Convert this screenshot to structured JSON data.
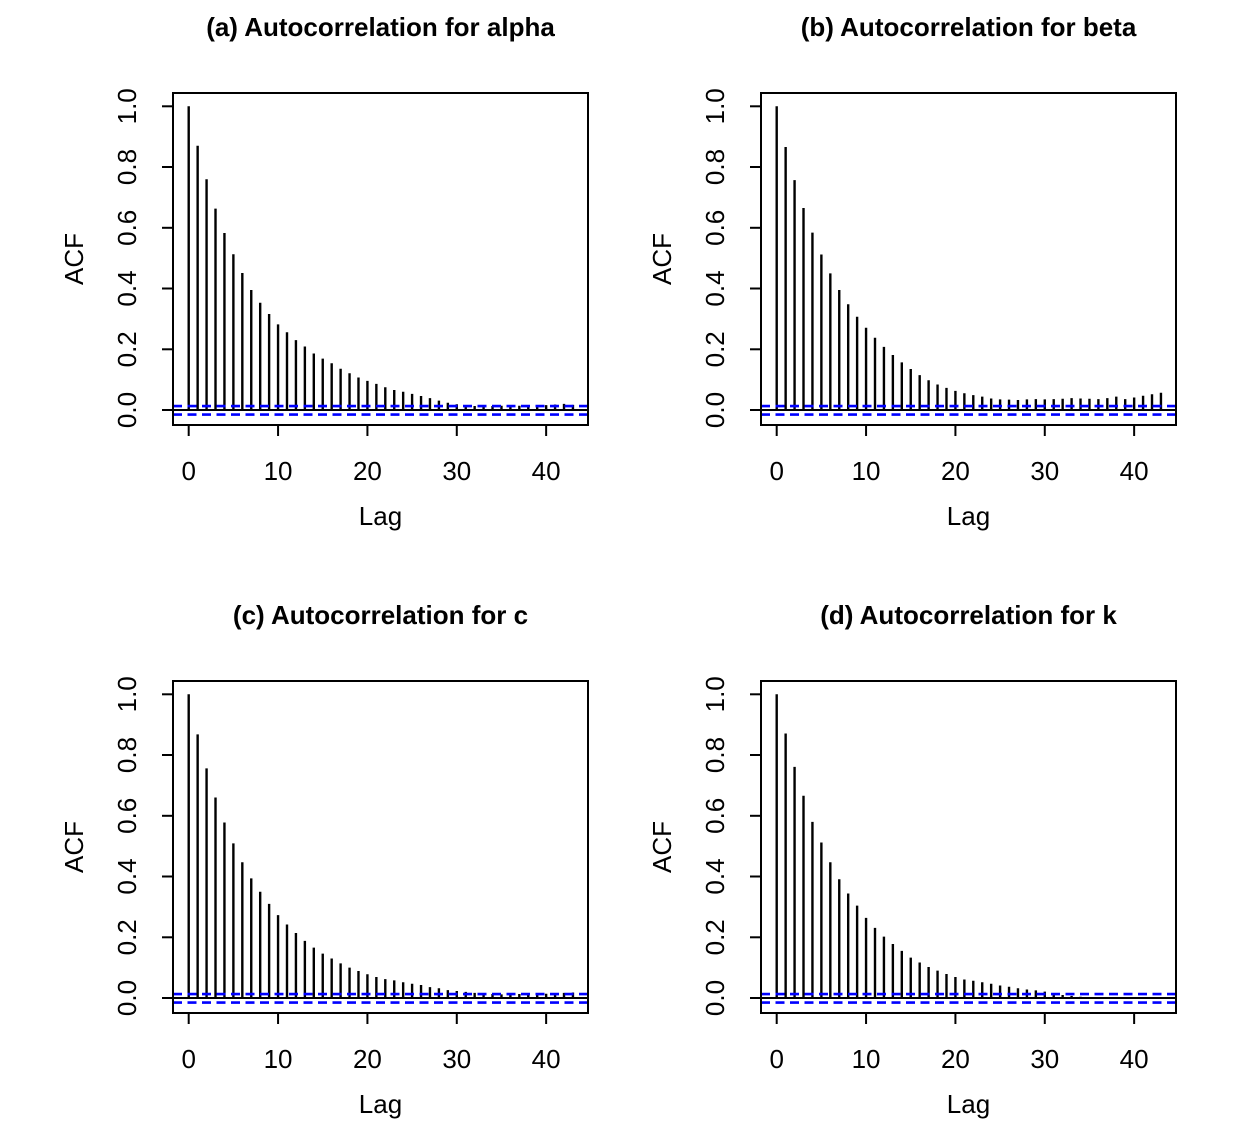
{
  "figure": {
    "background": "#ffffff",
    "line_color": "#000000",
    "ci_line_color": "#0000ff"
  },
  "chart_data": [
    {
      "id": "a",
      "type": "bar",
      "title": "(a) Autocorrelation for alpha",
      "xlabel": "Lag",
      "ylabel": "ACF",
      "x_ticks": [
        0,
        10,
        20,
        30,
        40
      ],
      "y_ticks": [
        {
          "v": 0.0,
          "label": "0.0"
        },
        {
          "v": 0.2,
          "label": "0.2"
        },
        {
          "v": 0.4,
          "label": "0.4"
        },
        {
          "v": 0.6,
          "label": "0.6"
        },
        {
          "v": 0.8,
          "label": "0.8"
        },
        {
          "v": 1.0,
          "label": "1.0"
        }
      ],
      "xlim": [
        -1.8,
        44.8
      ],
      "ylim": [
        -0.05,
        1.045
      ],
      "grid": false,
      "ci_upper": 0.013,
      "ci_lower": -0.015,
      "values": [
        1,
        0.87,
        0.76,
        0.663,
        0.583,
        0.513,
        0.451,
        0.395,
        0.353,
        0.316,
        0.282,
        0.256,
        0.23,
        0.209,
        0.186,
        0.169,
        0.154,
        0.136,
        0.121,
        0.107,
        0.096,
        0.086,
        0.075,
        0.066,
        0.06,
        0.053,
        0.046,
        0.039,
        0.031,
        0.024,
        0.019,
        0.014,
        0.013,
        0.012,
        0.013,
        0.014,
        0.013,
        0.014,
        0.013,
        0.012,
        0.016,
        0.018,
        0.02,
        0.017
      ]
    },
    {
      "id": "b",
      "type": "bar",
      "title": "(b) Autocorrelation for beta",
      "xlabel": "Lag",
      "ylabel": "ACF",
      "x_ticks": [
        0,
        10,
        20,
        30,
        40
      ],
      "y_ticks": [
        {
          "v": 0.0,
          "label": "0.0"
        },
        {
          "v": 0.2,
          "label": "0.2"
        },
        {
          "v": 0.4,
          "label": "0.4"
        },
        {
          "v": 0.6,
          "label": "0.6"
        },
        {
          "v": 0.8,
          "label": "0.8"
        },
        {
          "v": 1.0,
          "label": "1.0"
        }
      ],
      "xlim": [
        -1.8,
        44.8
      ],
      "ylim": [
        -0.05,
        1.045
      ],
      "grid": false,
      "ci_upper": 0.013,
      "ci_lower": -0.015,
      "values": [
        1,
        0.866,
        0.757,
        0.665,
        0.584,
        0.512,
        0.45,
        0.395,
        0.348,
        0.307,
        0.271,
        0.238,
        0.208,
        0.181,
        0.157,
        0.135,
        0.115,
        0.098,
        0.084,
        0.073,
        0.063,
        0.055,
        0.049,
        0.044,
        0.038,
        0.035,
        0.034,
        0.033,
        0.035,
        0.036,
        0.035,
        0.036,
        0.037,
        0.039,
        0.038,
        0.037,
        0.036,
        0.039,
        0.044,
        0.036,
        0.041,
        0.047,
        0.052,
        0.057
      ]
    },
    {
      "id": "c",
      "type": "bar",
      "title": "(c) Autocorrelation for c",
      "xlabel": "Lag",
      "ylabel": "ACF",
      "x_ticks": [
        0,
        10,
        20,
        30,
        40
      ],
      "y_ticks": [
        {
          "v": 0.0,
          "label": "0.0"
        },
        {
          "v": 0.2,
          "label": "0.2"
        },
        {
          "v": 0.4,
          "label": "0.4"
        },
        {
          "v": 0.6,
          "label": "0.6"
        },
        {
          "v": 0.8,
          "label": "0.8"
        },
        {
          "v": 1.0,
          "label": "1.0"
        }
      ],
      "xlim": [
        -1.8,
        44.8
      ],
      "ylim": [
        -0.05,
        1.045
      ],
      "grid": false,
      "ci_upper": 0.013,
      "ci_lower": -0.015,
      "values": [
        1,
        0.868,
        0.756,
        0.66,
        0.578,
        0.509,
        0.447,
        0.394,
        0.35,
        0.31,
        0.273,
        0.242,
        0.214,
        0.188,
        0.166,
        0.146,
        0.13,
        0.114,
        0.1,
        0.089,
        0.078,
        0.069,
        0.062,
        0.058,
        0.052,
        0.047,
        0.043,
        0.036,
        0.032,
        0.026,
        0.023,
        0.02,
        0.017,
        0.014,
        0.013,
        0.012,
        0.012,
        0.013,
        0.012,
        0.012,
        0.014,
        0.015,
        0.017,
        0.018
      ]
    },
    {
      "id": "d",
      "type": "bar",
      "title": "(d) Autocorrelation for k",
      "xlabel": "Lag",
      "ylabel": "ACF",
      "x_ticks": [
        0,
        10,
        20,
        30,
        40
      ],
      "y_ticks": [
        {
          "v": 0.0,
          "label": "0.0"
        },
        {
          "v": 0.2,
          "label": "0.2"
        },
        {
          "v": 0.4,
          "label": "0.4"
        },
        {
          "v": 0.6,
          "label": "0.6"
        },
        {
          "v": 0.8,
          "label": "0.8"
        },
        {
          "v": 1.0,
          "label": "1.0"
        }
      ],
      "xlim": [
        -1.8,
        44.8
      ],
      "ylim": [
        -0.05,
        1.045
      ],
      "grid": false,
      "ci_upper": 0.013,
      "ci_lower": -0.015,
      "values": [
        1,
        0.871,
        0.761,
        0.666,
        0.58,
        0.512,
        0.447,
        0.391,
        0.344,
        0.304,
        0.264,
        0.231,
        0.202,
        0.178,
        0.155,
        0.133,
        0.117,
        0.102,
        0.09,
        0.079,
        0.069,
        0.061,
        0.057,
        0.052,
        0.047,
        0.041,
        0.037,
        0.032,
        0.028,
        0.025,
        0.021,
        0.016,
        0.01,
        0.007,
        0.004,
        0.003,
        0.002,
        0.002,
        0.001,
        0.001,
        0.002,
        0.001,
        0.002,
        0.001
      ]
    }
  ]
}
